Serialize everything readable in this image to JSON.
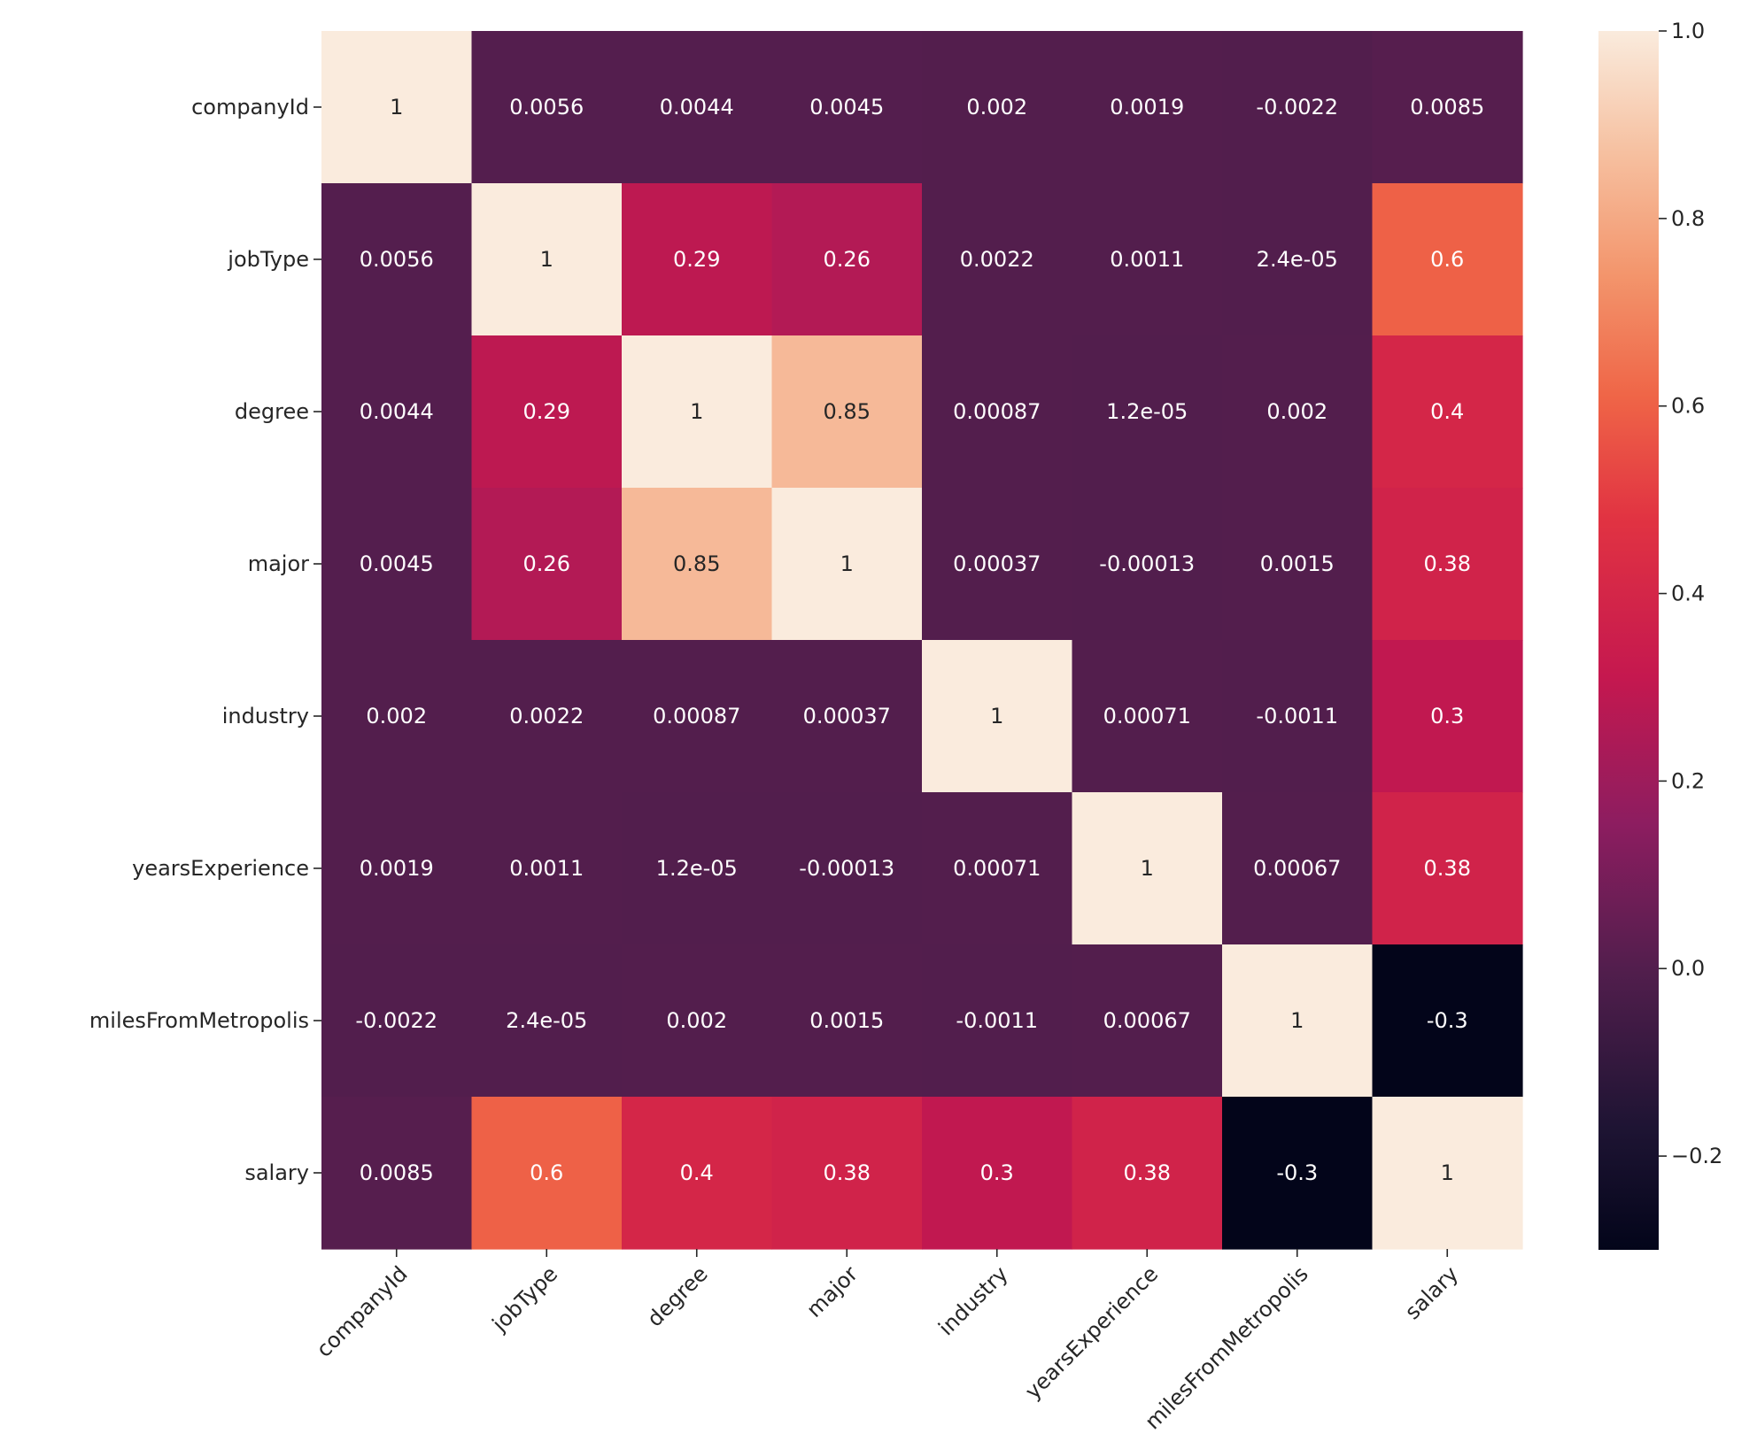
{
  "chart_data": {
    "type": "heatmap",
    "title": "",
    "xlabel": "",
    "ylabel": "",
    "row_labels": [
      "companyId",
      "jobType",
      "degree",
      "major",
      "industry",
      "yearsExperience",
      "milesFromMetropolis",
      "salary"
    ],
    "col_labels": [
      "companyId",
      "jobType",
      "degree",
      "major",
      "industry",
      "yearsExperience",
      "milesFromMetropolis",
      "salary"
    ],
    "values": [
      [
        1,
        0.0056,
        0.0044,
        0.0045,
        0.002,
        0.0019,
        -0.0022,
        0.0085
      ],
      [
        0.0056,
        1,
        0.29,
        0.26,
        0.0022,
        0.0011,
        2.4e-05,
        0.6
      ],
      [
        0.0044,
        0.29,
        1,
        0.85,
        0.00087,
        1.2e-05,
        0.002,
        0.4
      ],
      [
        0.0045,
        0.26,
        0.85,
        1,
        0.00037,
        -0.00013,
        0.0015,
        0.38
      ],
      [
        0.002,
        0.0022,
        0.00087,
        0.00037,
        1,
        0.00071,
        -0.0011,
        0.3
      ],
      [
        0.0019,
        0.0011,
        1.2e-05,
        -0.00013,
        0.00071,
        1,
        0.00067,
        0.38
      ],
      [
        -0.0022,
        2.4e-05,
        0.002,
        0.0015,
        -0.0011,
        0.00067,
        1,
        -0.3
      ],
      [
        0.0085,
        0.6,
        0.4,
        0.38,
        0.3,
        0.38,
        -0.3,
        1
      ]
    ],
    "annotations": [
      [
        "1",
        "0.0056",
        "0.0044",
        "0.0045",
        "0.002",
        "0.0019",
        "-0.0022",
        "0.0085"
      ],
      [
        "0.0056",
        "1",
        "0.29",
        "0.26",
        "0.0022",
        "0.0011",
        "2.4e-05",
        "0.6"
      ],
      [
        "0.0044",
        "0.29",
        "1",
        "0.85",
        "0.00087",
        "1.2e-05",
        "0.002",
        "0.4"
      ],
      [
        "0.0045",
        "0.26",
        "0.85",
        "1",
        "0.00037",
        "-0.00013",
        "0.0015",
        "0.38"
      ],
      [
        "0.002",
        "0.0022",
        "0.00087",
        "0.00037",
        "1",
        "0.00071",
        "-0.0011",
        "0.3"
      ],
      [
        "0.0019",
        "0.0011",
        "1.2e-05",
        "-0.00013",
        "0.00071",
        "1",
        "0.00067",
        "0.38"
      ],
      [
        "-0.0022",
        "2.4e-05",
        "0.002",
        "0.0015",
        "-0.0011",
        "0.00067",
        "1",
        "-0.3"
      ],
      [
        "0.0085",
        "0.6",
        "0.4",
        "0.38",
        "0.3",
        "0.38",
        "-0.3",
        "1"
      ]
    ],
    "colorbar": {
      "range": [
        -0.3,
        1.0
      ],
      "ticks": [
        -0.2,
        0.0,
        0.2,
        0.4,
        0.6,
        0.8,
        1.0
      ],
      "tick_labels": [
        "−0.2",
        "0.0",
        "0.2",
        "0.4",
        "0.6",
        "0.8",
        "1.0"
      ],
      "colormap": "rocket",
      "stops": [
        [
          0.0,
          "#03051a"
        ],
        [
          0.1,
          "#1e1433"
        ],
        [
          0.23,
          "#521e4d"
        ],
        [
          0.35,
          "#8d1d60"
        ],
        [
          0.47,
          "#c5184f"
        ],
        [
          0.6,
          "#e13342"
        ],
        [
          0.7,
          "#ef6547"
        ],
        [
          0.8,
          "#f3956c"
        ],
        [
          0.9,
          "#f6c0a0"
        ],
        [
          1.0,
          "#faebdd"
        ]
      ]
    },
    "grid": false,
    "legend": "none"
  }
}
